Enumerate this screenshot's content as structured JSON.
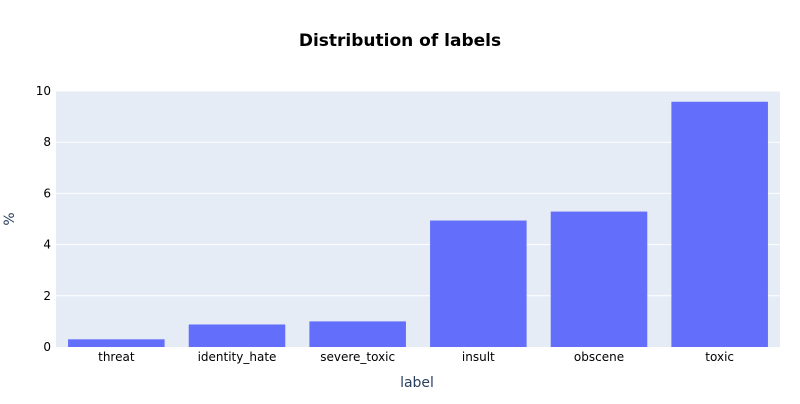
{
  "chart_data": {
    "type": "bar",
    "title": "Distribution of labels",
    "xlabel": "label",
    "ylabel": "%",
    "categories": [
      "threat",
      "identity_hate",
      "severe_toxic",
      "insult",
      "obscene",
      "toxic"
    ],
    "values": [
      0.3,
      0.88,
      1.0,
      4.94,
      5.29,
      9.58
    ],
    "ylim": [
      0,
      10
    ],
    "yticks": [
      "0",
      "2",
      "4",
      "6",
      "8",
      "10"
    ],
    "grid": true,
    "legend": "none",
    "colors": {
      "bar": "#636efa",
      "plot_background": "#e5ecf6",
      "grid": "#ffffff"
    }
  }
}
